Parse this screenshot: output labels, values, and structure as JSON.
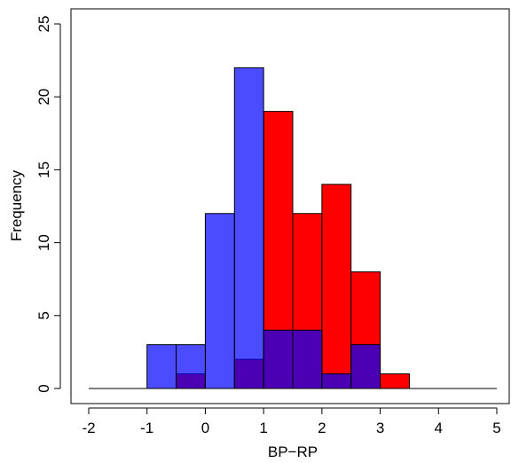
{
  "chart_data": {
    "type": "histogram",
    "xlabel": "BP−RP",
    "ylabel": "Frequency",
    "bins": [
      -2,
      -1.5,
      -1,
      -0.5,
      0,
      0.5,
      1,
      1.5,
      2,
      2.5,
      3,
      3.5,
      4,
      4.5,
      5
    ],
    "series": [
      {
        "color": "#ff0000",
        "opacity": 1,
        "values": [
          0,
          0,
          0,
          1,
          0,
          2,
          19,
          12,
          14,
          8,
          1,
          0,
          0,
          0
        ]
      },
      {
        "color": "#0000ff",
        "opacity": 0.7,
        "values": [
          0,
          0,
          3,
          3,
          12,
          22,
          4,
          4,
          1,
          3,
          0,
          0,
          0,
          0
        ]
      }
    ],
    "xlim": [
      -2,
      5
    ],
    "xticks": [
      -2,
      -1,
      0,
      1,
      2,
      3,
      4,
      5
    ],
    "ylim": [
      0,
      25
    ],
    "yticks": [
      0,
      5,
      10,
      15,
      20,
      25
    ]
  }
}
